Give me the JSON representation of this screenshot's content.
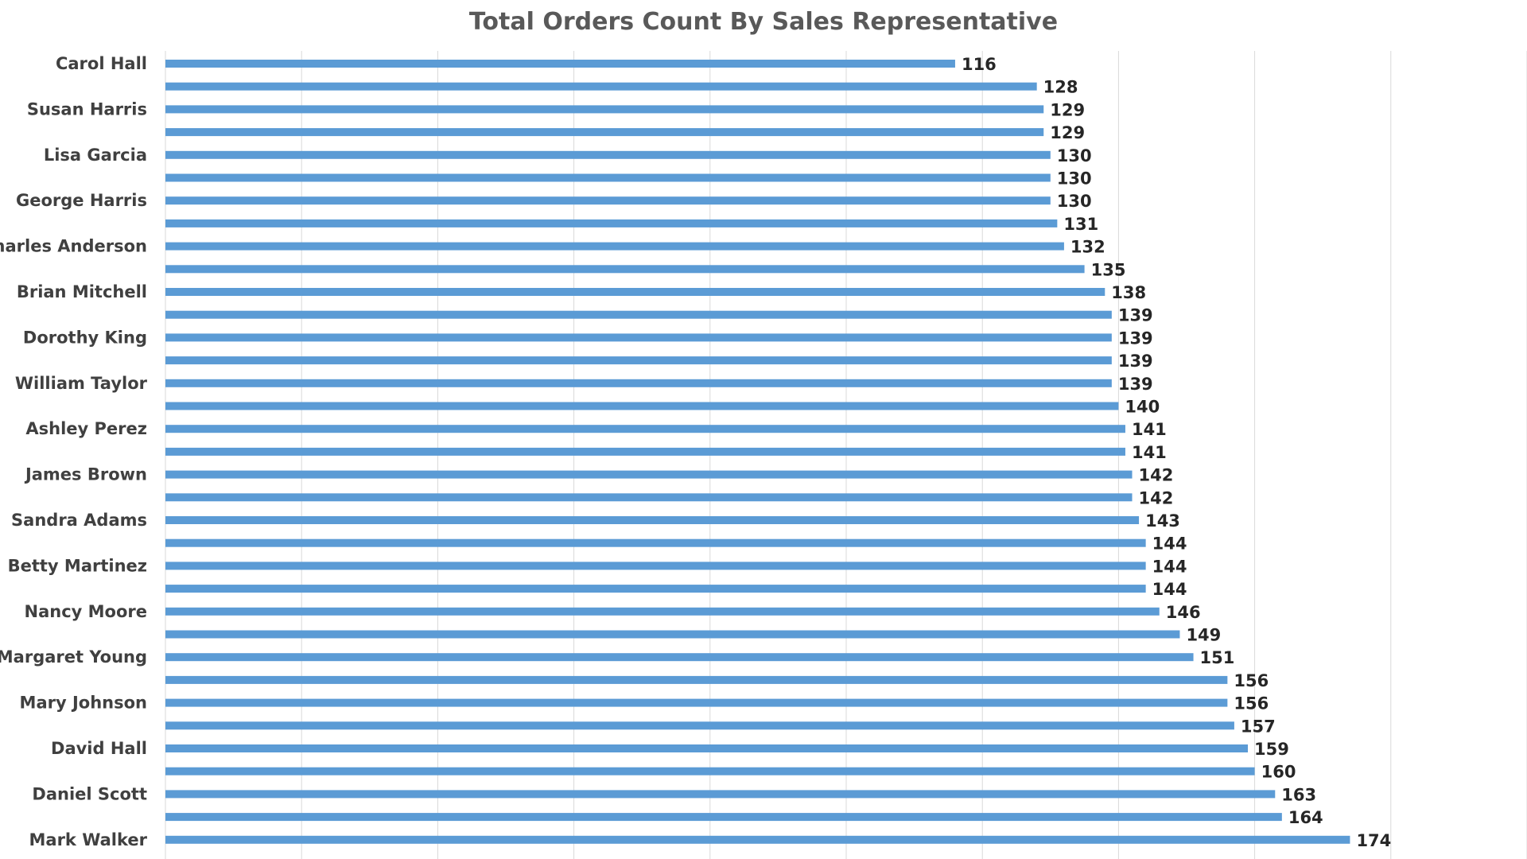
{
  "chart_data": {
    "type": "bar",
    "orientation": "horizontal",
    "title": "Total Orders Count By Sales Representative",
    "xlabel": "",
    "ylabel": "",
    "xlim": [
      0,
      200
    ],
    "grid": "vertical",
    "legend": "none",
    "bar_color": "#5b9bd5",
    "categories": [
      "Carol Hall",
      "",
      "Susan Harris",
      "",
      "Lisa Garcia",
      "",
      "George Harris",
      "",
      "Charles Anderson",
      "",
      "Brian Mitchell",
      "",
      "Dorothy King",
      "",
      "William Taylor",
      "",
      "Ashley Perez",
      "",
      "James Brown",
      "",
      "Sandra Adams",
      "",
      "Betty Martinez",
      "",
      "Nancy Moore",
      "",
      "Margaret Young",
      "",
      "Mary Johnson",
      "",
      "David Hall",
      "",
      "Daniel Scott",
      "",
      "Mark Walker"
    ],
    "values": [
      116,
      128,
      129,
      129,
      130,
      130,
      130,
      131,
      132,
      135,
      138,
      139,
      139,
      139,
      139,
      140,
      141,
      141,
      142,
      142,
      143,
      144,
      144,
      144,
      146,
      149,
      151,
      156,
      156,
      157,
      159,
      160,
      163,
      164,
      174
    ]
  }
}
